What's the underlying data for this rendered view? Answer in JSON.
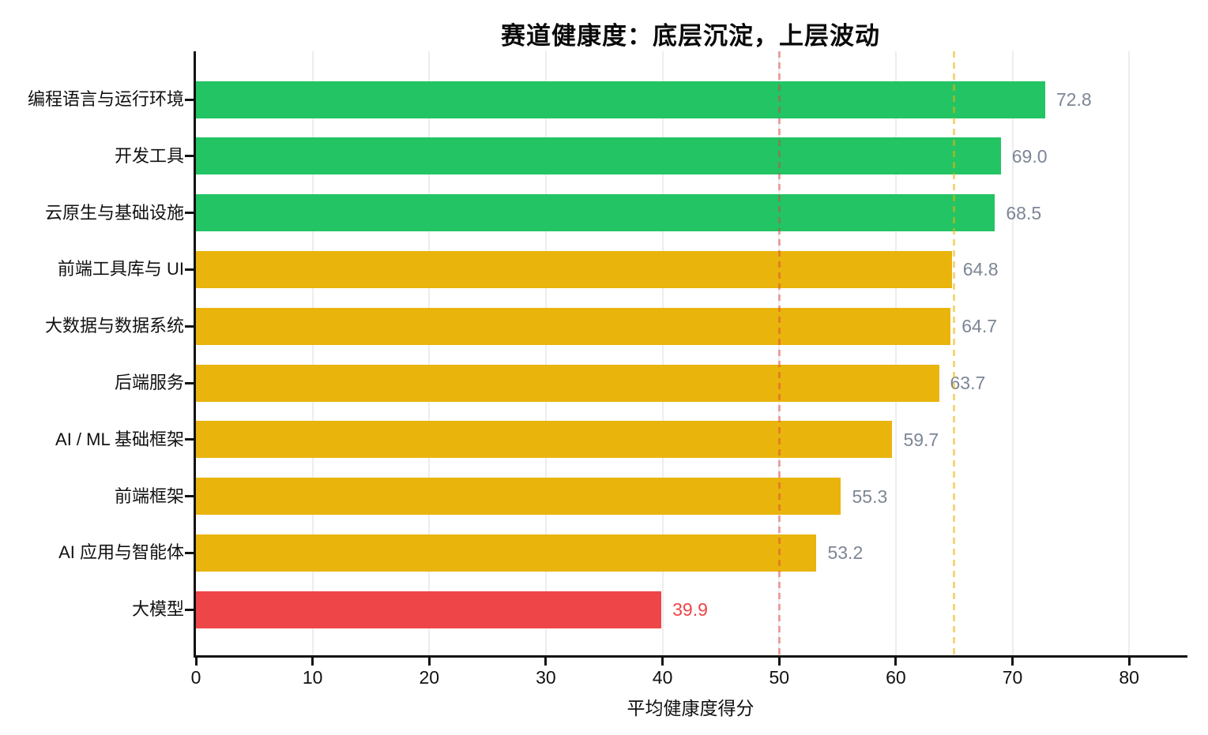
{
  "chart_data": {
    "type": "bar",
    "orientation": "horizontal",
    "title": "赛道健康度：底层沉淀，上层波动",
    "xlabel": "平均健康度得分",
    "categories": [
      "编程语言与运行环境",
      "开发工具",
      "云原生与基础设施",
      "前端工具库与 UI",
      "大数据与数据系统",
      "后端服务",
      "AI / ML 基础框架",
      "前端框架",
      "AI 应用与智能体",
      "大模型"
    ],
    "values": [
      72.8,
      69.0,
      68.5,
      64.8,
      64.7,
      63.7,
      59.7,
      55.3,
      53.2,
      39.9
    ],
    "value_labels": [
      "72.8",
      "69.0",
      "68.5",
      "64.8",
      "64.7",
      "63.7",
      "59.7",
      "55.3",
      "53.2",
      "39.9"
    ],
    "bar_colors": [
      "#22c463",
      "#22c463",
      "#22c463",
      "#e9b40c",
      "#e9b40c",
      "#e9b40c",
      "#e9b40c",
      "#e9b40c",
      "#e9b40c",
      "#ee4548"
    ],
    "value_label_colors": [
      "#7c8695",
      "#7c8695",
      "#7c8695",
      "#7c8695",
      "#7c8695",
      "#7c8695",
      "#7c8695",
      "#7c8695",
      "#7c8695",
      "#ee4548"
    ],
    "xlim": [
      0,
      85
    ],
    "xticks": [
      0,
      10,
      20,
      30,
      40,
      50,
      60,
      70,
      80
    ],
    "grid": {
      "axis": "x",
      "color": "#ededed"
    },
    "legend": false,
    "reference_lines": [
      {
        "x": 50,
        "color": "rgba(225,60,60,0.45)",
        "style": "dashed"
      },
      {
        "x": 65,
        "color": "rgba(234,179,8,0.55)",
        "style": "dashed"
      }
    ],
    "colors": {
      "green": "#22c463",
      "yellow": "#e9b40c",
      "red": "#ee4548",
      "axis": "#111111",
      "grid": "#ededed",
      "value_label": "#7c8695",
      "background": "#ffffff"
    }
  }
}
